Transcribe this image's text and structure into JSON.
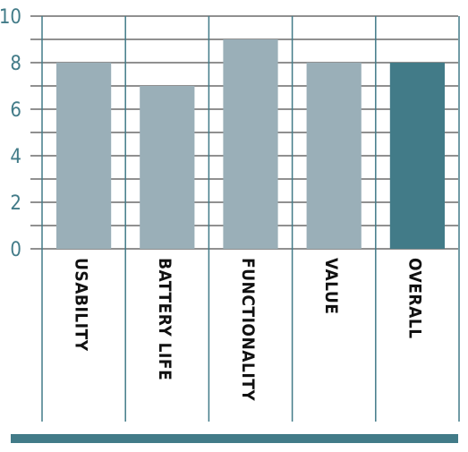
{
  "chart_data": {
    "type": "bar",
    "title": "",
    "xlabel": "",
    "ylabel": "",
    "categories": [
      "USABILITY",
      "BATTERY LIFE",
      "FUNCTIONALITY",
      "VALUE",
      "OVERALL"
    ],
    "values": [
      8,
      7,
      9,
      8,
      8
    ],
    "ylim": [
      0,
      10
    ],
    "yticks": [
      0,
      2,
      4,
      6,
      8,
      10
    ],
    "grid": true,
    "colors": {
      "bar": "#9aafb8",
      "highlight_bar": "#427b88",
      "axis_text": "#427b88",
      "grid": "#222222",
      "footer_bar": "#427b88"
    },
    "highlight_index": 4
  }
}
